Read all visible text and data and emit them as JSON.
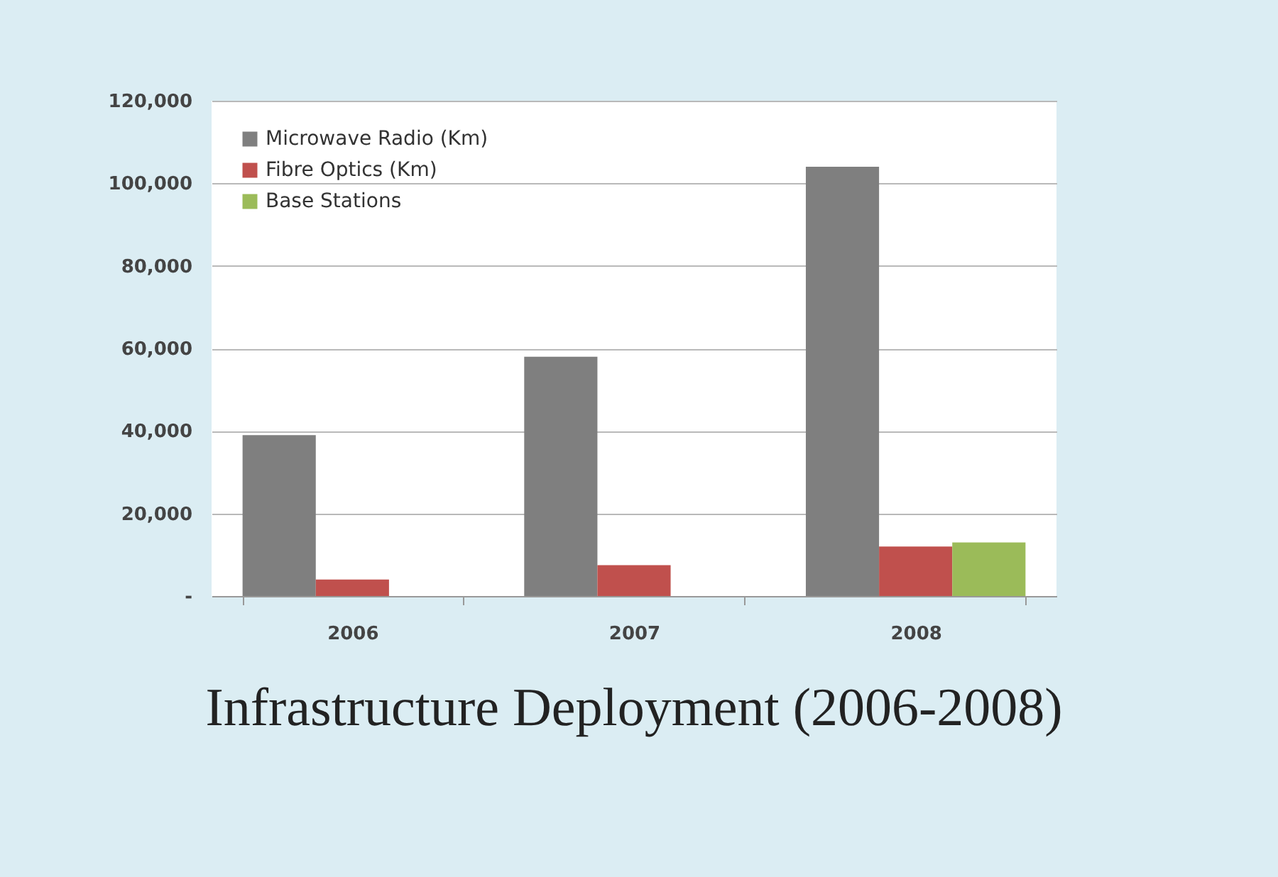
{
  "chart_data": {
    "type": "bar",
    "title": "Infrastructure Deployment (2006-2008)",
    "categories": [
      "2006",
      "2007",
      "2008"
    ],
    "series": [
      {
        "name": "Microwave Radio (Km)",
        "color": "#7f7f7f",
        "values": [
          39000,
          58000,
          104000
        ]
      },
      {
        "name": "Fibre Optics (Km)",
        "color": "#c0504d",
        "values": [
          4000,
          7500,
          12000
        ]
      },
      {
        "name": "Base Stations",
        "color": "#9bbb59",
        "values": [
          null,
          null,
          13000
        ]
      }
    ],
    "ylim": [
      0,
      120000
    ],
    "yticks": [
      {
        "value": 0,
        "label": "-"
      },
      {
        "value": 20000,
        "label": "20,000"
      },
      {
        "value": 40000,
        "label": "40,000"
      },
      {
        "value": 60000,
        "label": "60,000"
      },
      {
        "value": 80000,
        "label": "80,000"
      },
      {
        "value": 100000,
        "label": "100,000"
      },
      {
        "value": 120000,
        "label": "120,000"
      }
    ],
    "grid": "y",
    "legend": "top left"
  }
}
